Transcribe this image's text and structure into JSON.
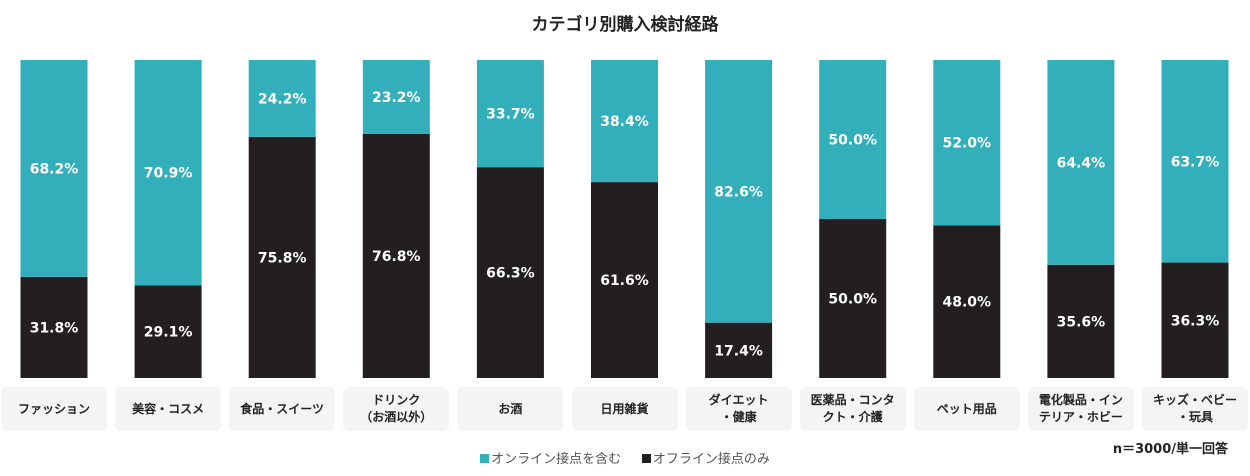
{
  "chart_data": {
    "type": "bar",
    "stacked": true,
    "title": "カテゴリ別購入検討経路",
    "categories": [
      "ファッション",
      "美容・コスメ",
      "食品・スイーツ",
      "ドリンク\n（お酒以外）",
      "お酒",
      "日用雑貨",
      "ダイエット\n・健康",
      "医薬品・コンタ\nクト・介護",
      "ペット用品",
      "電化製品・イン\nテリア・ホビー",
      "キッズ・ベビー\n・玩具"
    ],
    "series": [
      {
        "name": "オフライン接点のみ",
        "color": "#231f20",
        "values": [
          31.8,
          29.1,
          75.8,
          76.8,
          66.3,
          61.6,
          17.4,
          50.0,
          48.0,
          35.6,
          36.3
        ]
      },
      {
        "name": "オンライン接点を含む",
        "color": "#33aebb",
        "values": [
          68.2,
          70.9,
          24.2,
          23.2,
          33.7,
          38.4,
          82.6,
          50.0,
          52.0,
          64.4,
          63.7
        ]
      }
    ],
    "ylim": [
      0,
      100
    ],
    "legend_position": "bottom",
    "grid": false,
    "note": "n＝3000/単一回答"
  }
}
